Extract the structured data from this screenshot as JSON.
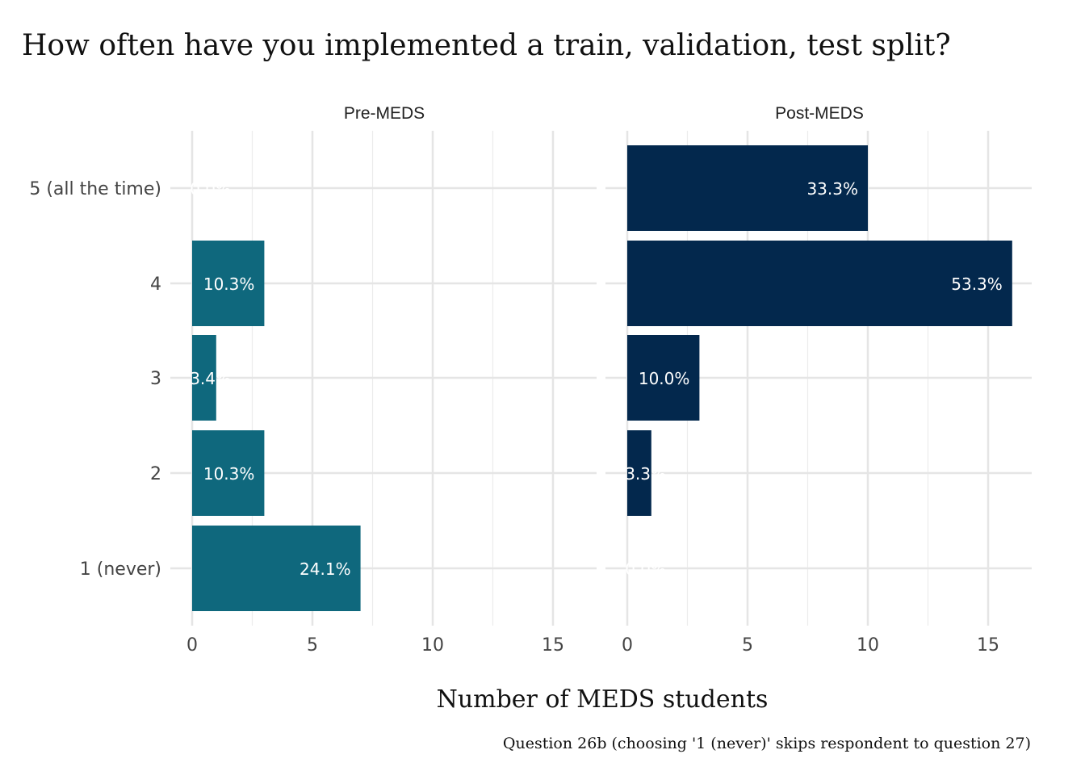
{
  "chart_data": {
    "type": "bar",
    "orientation": "horizontal",
    "title": "How often have you implemented a train, validation, test split?",
    "xlabel": "Number of MEDS students",
    "ylabel": "",
    "caption": "Question 26b (choosing '1 (never)' skips respondent to question 27)",
    "categories": [
      "5 (all the time)",
      "4",
      "3",
      "2",
      "1 (never)"
    ],
    "xlim": [
      0,
      16.8
    ],
    "xticks": [
      0,
      5,
      10,
      15
    ],
    "grid": true,
    "legend": "none",
    "panels": [
      {
        "name": "Pre-MEDS",
        "color": "#0f687d",
        "values": [
          0,
          3,
          1,
          3,
          7
        ],
        "labels": [
          "0.0%",
          "10.3%",
          "3.4%",
          "10.3%",
          "24.1%"
        ]
      },
      {
        "name": "Post-MEDS",
        "color": "#03284d",
        "values": [
          10,
          16,
          3,
          1,
          0
        ],
        "labels": [
          "33.3%",
          "53.3%",
          "10.0%",
          "3.3%",
          "0.0%"
        ]
      }
    ]
  }
}
